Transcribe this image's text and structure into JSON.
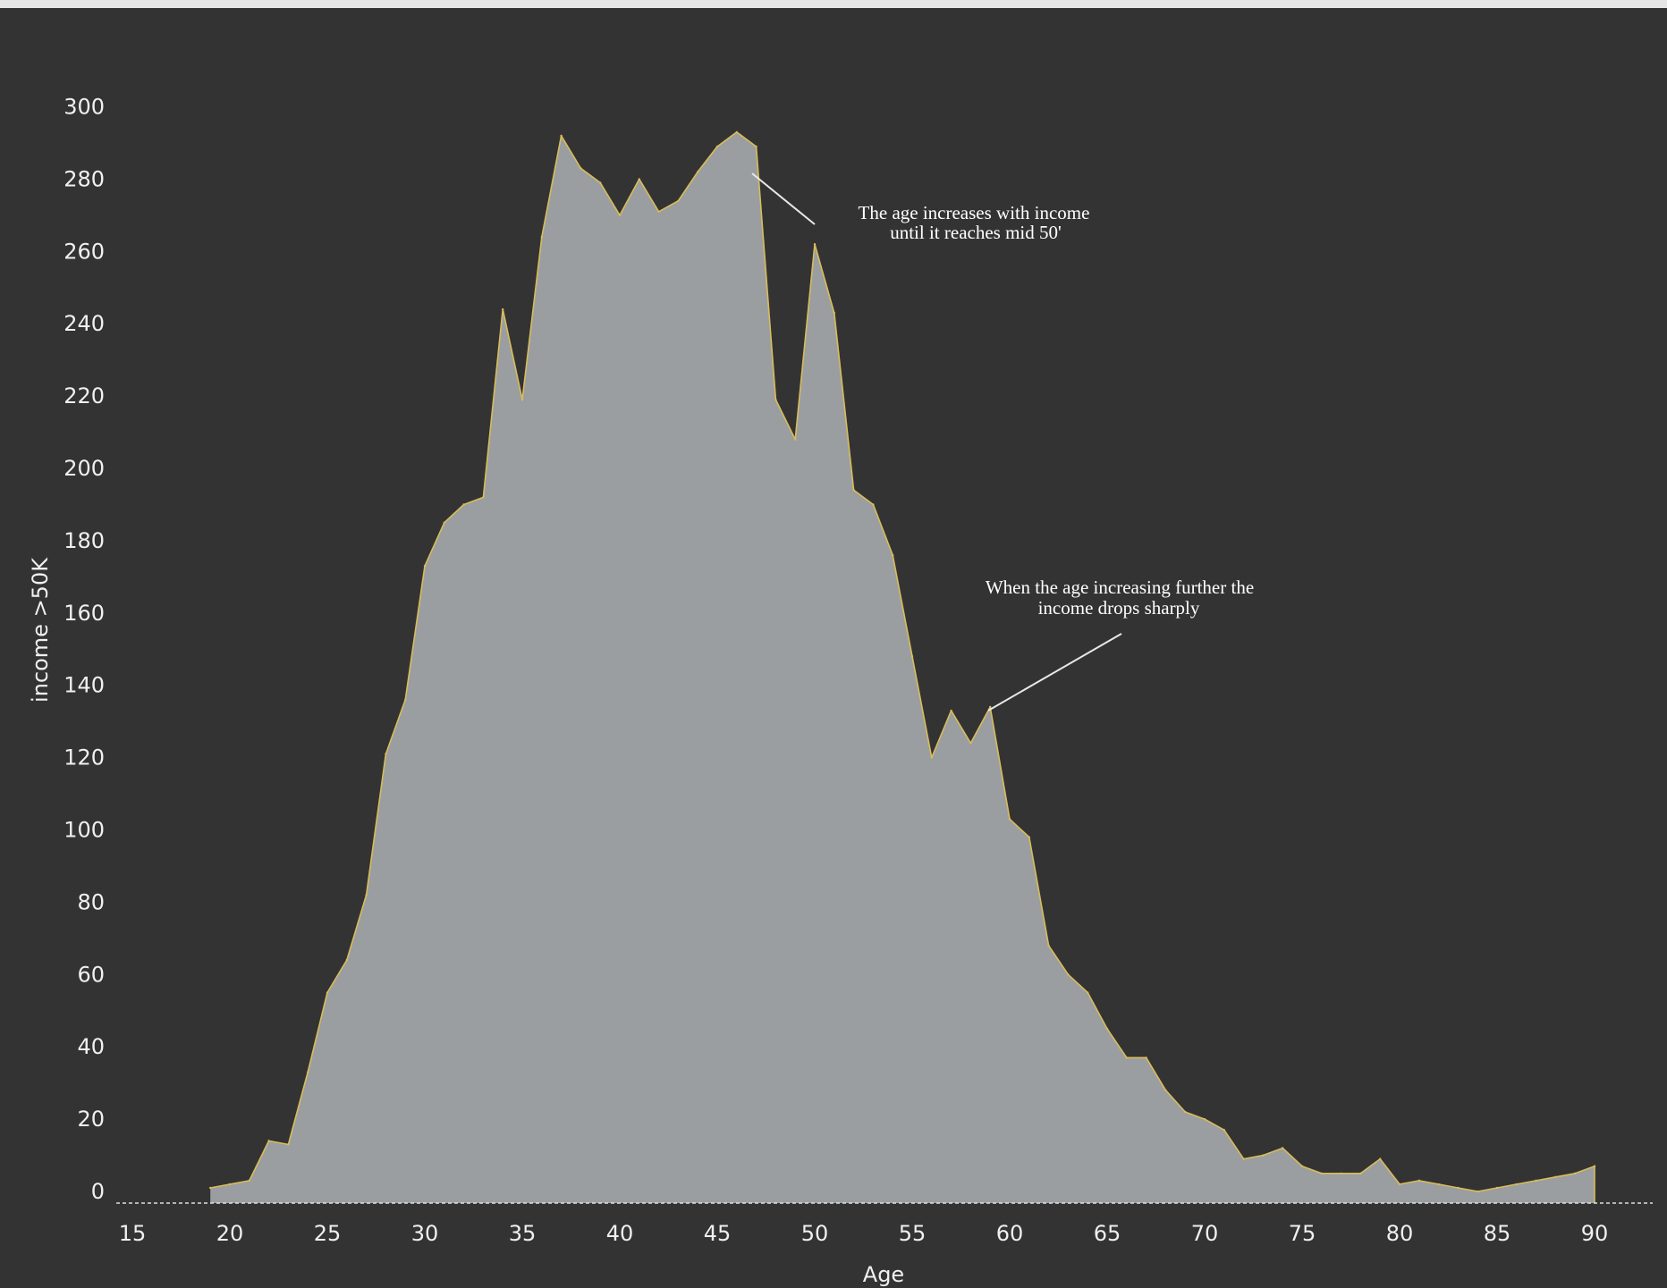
{
  "chart_data": {
    "type": "area",
    "xlabel": "Age",
    "ylabel": "income >50K",
    "xlim": [
      13,
      94
    ],
    "ylim": [
      -4,
      310
    ],
    "x_ticks": [
      15,
      20,
      25,
      30,
      35,
      40,
      45,
      50,
      55,
      60,
      65,
      70,
      75,
      80,
      85,
      90
    ],
    "y_ticks": [
      0,
      20,
      40,
      60,
      80,
      100,
      120,
      140,
      160,
      180,
      200,
      220,
      240,
      260,
      280,
      300
    ],
    "grid": false,
    "colors": {
      "background": "#333333",
      "fill": "#9a9ea1",
      "stroke": "#d9bc5a",
      "text": "#f0f0f0",
      "annotation": "#ffffff"
    },
    "series": [
      {
        "x": [
          19,
          20,
          21,
          22,
          23,
          24,
          25,
          26,
          27,
          28,
          29,
          30,
          31,
          32,
          33,
          34,
          35,
          36,
          37,
          38,
          39,
          40,
          41,
          42,
          43,
          44,
          45,
          46,
          47,
          48,
          49,
          50,
          51,
          52,
          53,
          54,
          55,
          56,
          57,
          58,
          59,
          60,
          61,
          62,
          63,
          64,
          65,
          66,
          67,
          68,
          69,
          70,
          71,
          72,
          73,
          74,
          75,
          76,
          77,
          78,
          79,
          80,
          81,
          82,
          83,
          84,
          85,
          86,
          87,
          88,
          89,
          90
        ],
        "values": [
          1,
          2,
          3,
          14,
          13,
          33,
          55,
          64,
          82,
          121,
          136,
          173,
          185,
          190,
          192,
          244,
          219,
          264,
          292,
          283,
          279,
          270,
          280,
          271,
          274,
          282,
          289,
          293,
          289,
          219,
          208,
          262,
          243,
          194,
          190,
          176,
          148,
          120,
          133,
          124,
          134,
          103,
          98,
          68,
          60,
          55,
          45,
          37,
          37,
          28,
          22,
          20,
          17,
          9,
          10,
          12,
          7,
          5,
          5,
          5,
          9,
          2,
          3,
          2,
          1,
          0,
          1,
          2,
          3,
          4,
          5,
          7
        ]
      }
    ],
    "annotations": [
      {
        "text_lines": [
          "The age increases with income",
          "until it reaches mid 50'"
        ]
      },
      {
        "text_lines": [
          "When the age increasing further the",
          "income drops sharply"
        ]
      }
    ]
  }
}
